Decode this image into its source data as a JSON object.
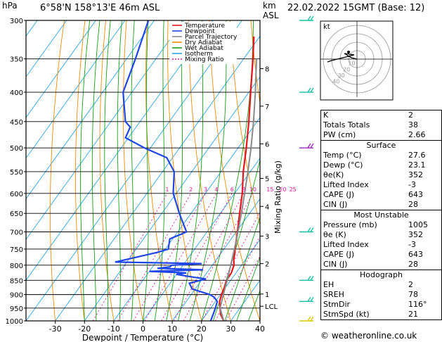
{
  "header": {
    "hpa_unit": "hPa",
    "location": "6°58'N 158°13'E 46m ASL",
    "km_unit": "km",
    "asl_unit": "ASL",
    "datetime": "22.02.2022 15GMT (Base: 12)"
  },
  "footer": {
    "copyright": "© weatheronline.co.uk"
  },
  "chart_data": {
    "type": "line",
    "title": "",
    "xlabel": "Dewpoint / Temperature (°C)",
    "ylabel": "hPa",
    "xlim": [
      -40,
      40
    ],
    "ylim": [
      1000,
      300
    ],
    "y_scale": "log",
    "skew": "skew-T",
    "pressure_ticks": [
      300,
      350,
      400,
      450,
      500,
      550,
      600,
      650,
      700,
      750,
      800,
      850,
      900,
      950,
      1000
    ],
    "temp_ticks": [
      -30,
      -20,
      -10,
      0,
      10,
      20,
      30,
      40
    ],
    "km_ticks": [
      {
        "label": "8",
        "p": 364
      },
      {
        "label": "7",
        "p": 423
      },
      {
        "label": "6",
        "p": 492
      },
      {
        "label": "5",
        "p": 565
      },
      {
        "label": "4",
        "p": 632
      },
      {
        "label": "3",
        "p": 712
      },
      {
        "label": "2",
        "p": 795
      },
      {
        "label": "1",
        "p": 898
      },
      {
        "label": "LCL",
        "p": 943
      }
    ],
    "mixing_ratio_label": "Mixing Ratio (g/kg)",
    "mixing_ratio_values": [
      "1",
      "2",
      "3",
      "4",
      "6",
      "8",
      "10",
      "15",
      "20",
      "25"
    ],
    "legend": [
      {
        "name": "Temperature",
        "color": "#e8141c"
      },
      {
        "name": "Dewpoint",
        "color": "#1f46e6"
      },
      {
        "name": "Parcel Trajectory",
        "color": "#8a8a8a"
      },
      {
        "name": "Dry Adiabat",
        "color": "#f08c00"
      },
      {
        "name": "Wet Adiabat",
        "color": "#19a019"
      },
      {
        "name": "Isotherm",
        "color": "#2aa6e6"
      },
      {
        "name": "Mixing Ratio",
        "color": "#e8149a"
      }
    ],
    "series": [
      {
        "name": "Temperature",
        "color": "#e8141c",
        "points": [
          [
            1000,
            27.6
          ],
          [
            975,
            25
          ],
          [
            950,
            23.2
          ],
          [
            925,
            21.4
          ],
          [
            900,
            20.4
          ],
          [
            875,
            19.6
          ],
          [
            850,
            18.6
          ],
          [
            825,
            18.4
          ],
          [
            800,
            17.4
          ],
          [
            780,
            15.8
          ],
          [
            760,
            14.6
          ],
          [
            750,
            13.8
          ],
          [
            700,
            10.4
          ],
          [
            650,
            6.6
          ],
          [
            600,
            2.6
          ],
          [
            550,
            -2.4
          ],
          [
            500,
            -7.2
          ],
          [
            450,
            -12.8
          ],
          [
            400,
            -19.4
          ],
          [
            350,
            -26.8
          ],
          [
            320,
            -32
          ]
        ]
      },
      {
        "name": "Dewpoint",
        "color": "#1f46e6",
        "points": [
          [
            1000,
            23.1
          ],
          [
            975,
            22.4
          ],
          [
            950,
            21.6
          ],
          [
            925,
            20.6
          ],
          [
            910,
            18.6
          ],
          [
            900,
            16.4
          ],
          [
            880,
            9
          ],
          [
            860,
            6.6
          ],
          [
            845,
            11.2
          ],
          [
            840,
            7
          ],
          [
            830,
            0
          ],
          [
            825,
            3
          ],
          [
            820,
            -10
          ],
          [
            815,
            8
          ],
          [
            810,
            -8
          ],
          [
            805,
            -4
          ],
          [
            800,
            -4
          ],
          [
            795,
            6
          ],
          [
            790,
            -24
          ],
          [
            770,
            -16
          ],
          [
            760,
            -12
          ],
          [
            750,
            -9
          ],
          [
            720,
            -11
          ],
          [
            700,
            -7
          ],
          [
            650,
            -14
          ],
          [
            600,
            -21
          ],
          [
            550,
            -26
          ],
          [
            520,
            -32
          ],
          [
            500,
            -42
          ],
          [
            480,
            -51
          ],
          [
            460,
            -52
          ],
          [
            450,
            -55
          ],
          [
            400,
            -63
          ],
          [
            350,
            -67
          ],
          [
            300,
            -72
          ]
        ]
      },
      {
        "name": "Parcel Trajectory",
        "color": "#8a8a8a",
        "points": [
          [
            1000,
            27.6
          ],
          [
            950,
            23.2
          ],
          [
            900,
            21
          ],
          [
            850,
            18.8
          ],
          [
            800,
            16.3
          ],
          [
            750,
            13.6
          ],
          [
            700,
            10.6
          ],
          [
            650,
            7.2
          ],
          [
            600,
            3.4
          ],
          [
            550,
            -0.8
          ],
          [
            500,
            -5.6
          ],
          [
            450,
            -11.2
          ],
          [
            400,
            -17.8
          ],
          [
            350,
            -25.6
          ]
        ]
      }
    ]
  },
  "hodograph": {
    "label": "kt",
    "ring_labels": [
      "10",
      "20",
      "30",
      "40"
    ]
  },
  "indices": {
    "rows": [
      {
        "label": "K",
        "value": "2"
      },
      {
        "label": "Totals Totals",
        "value": "38"
      },
      {
        "label": "PW (cm)",
        "value": "2.66"
      }
    ],
    "surface_title": "Surface",
    "surface": [
      {
        "label": "Temp (°C)",
        "value": "27.6"
      },
      {
        "label": "Dewp (°C)",
        "value": "23.1"
      },
      {
        "label": "θe(K)",
        "value": "352"
      },
      {
        "label": "Lifted Index",
        "value": "-3"
      },
      {
        "label": "CAPE (J)",
        "value": "643"
      },
      {
        "label": "CIN (J)",
        "value": "28"
      }
    ],
    "unstable_title": "Most Unstable",
    "unstable": [
      {
        "label": "Pressure (mb)",
        "value": "1005"
      },
      {
        "label": "θe (K)",
        "value": "352"
      },
      {
        "label": "Lifted Index",
        "value": "-3"
      },
      {
        "label": "CAPE (J)",
        "value": "643"
      },
      {
        "label": "CIN (J)",
        "value": "28"
      }
    ],
    "hodo_title": "Hodograph",
    "hodo": [
      {
        "label": "EH",
        "value": "2"
      },
      {
        "label": "SREH",
        "value": "78"
      },
      {
        "label": "StmDir",
        "value": "116°"
      },
      {
        "label": "StmSpd (kt)",
        "value": "21"
      }
    ]
  },
  "wind_barbs": [
    {
      "p": 300,
      "color": "#17c0a8"
    },
    {
      "p": 400,
      "color": "#17c0a8"
    },
    {
      "p": 500,
      "color": "#9a2ab8"
    },
    {
      "p": 700,
      "color": "#17c0a8"
    },
    {
      "p": 850,
      "color": "#17c0a8"
    },
    {
      "p": 925,
      "color": "#17c0a8"
    },
    {
      "p": 1000,
      "color": "#e0c800"
    }
  ]
}
